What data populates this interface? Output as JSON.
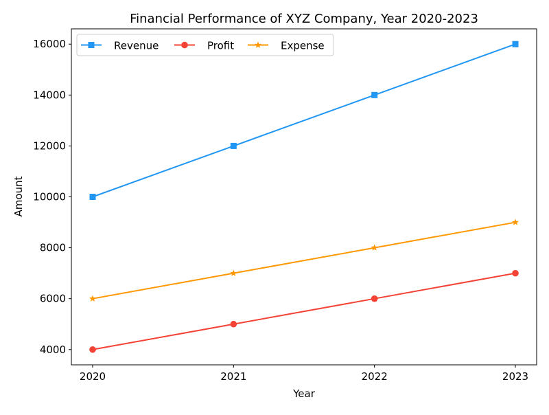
{
  "chart_data": {
    "type": "line",
    "title": "Financial Performance of XYZ Company, Year 2020-2023",
    "xlabel": "Year",
    "ylabel": "Amount",
    "categories": [
      "2020",
      "2021",
      "2022",
      "2023"
    ],
    "ylim": [
      3400,
      16600
    ],
    "yticks": [
      4000,
      6000,
      8000,
      10000,
      12000,
      14000,
      16000
    ],
    "grid": false,
    "legend_position": "top-left",
    "legend_columns": 3,
    "series": [
      {
        "name": "Revenue",
        "values": [
          10000,
          12000,
          14000,
          16000
        ],
        "color": "#2196f3",
        "marker": "square"
      },
      {
        "name": "Profit",
        "values": [
          4000,
          5000,
          6000,
          7000
        ],
        "color": "#f44336",
        "marker": "circle"
      },
      {
        "name": "Expense",
        "values": [
          6000,
          7000,
          8000,
          9000
        ],
        "color": "#ff9800",
        "marker": "star"
      }
    ]
  }
}
